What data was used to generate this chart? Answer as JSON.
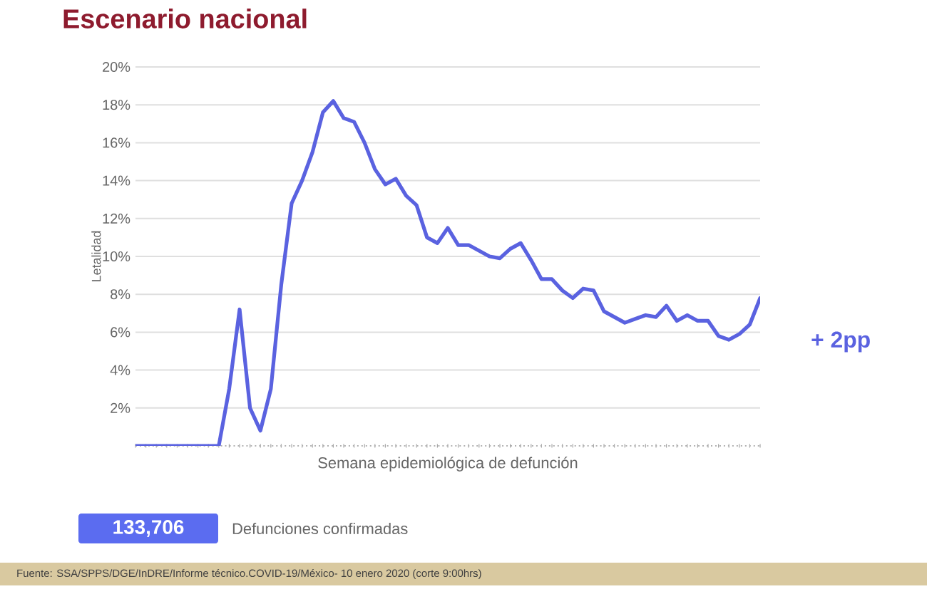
{
  "chart_data": {
    "type": "line",
    "title": "Escenario nacional",
    "xlabel": "Semana epidemiológica de defunción",
    "ylabel": "Letalidad",
    "categories": [
      null,
      null,
      null,
      null,
      null,
      null,
      null,
      null,
      null,
      null,
      null,
      null,
      null,
      null,
      null,
      null,
      null,
      null,
      null,
      null,
      null,
      null,
      null,
      null,
      null,
      null,
      null,
      null,
      null,
      null,
      null,
      null,
      null,
      null,
      null,
      null,
      null,
      null,
      null,
      null,
      null,
      null,
      null,
      null,
      null,
      null,
      null,
      null,
      null,
      null,
      null,
      null,
      null,
      null,
      null,
      null,
      null,
      null,
      null,
      null,
      null
    ],
    "series": [
      {
        "color": "#5a62e0",
        "values": [
          0,
          0,
          0,
          0,
          0,
          0,
          0,
          0,
          0,
          3.0,
          7.2,
          2.0,
          0.8,
          3.0,
          8.5,
          12.8,
          14.0,
          15.5,
          17.6,
          18.2,
          17.3,
          17.1,
          16.0,
          14.6,
          13.8,
          14.1,
          13.2,
          12.7,
          11.0,
          10.7,
          11.5,
          10.6,
          10.6,
          10.3,
          10.0,
          9.9,
          10.4,
          10.7,
          9.8,
          8.8,
          8.8,
          8.2,
          7.8,
          8.3,
          8.2,
          7.1,
          6.8,
          6.5,
          6.7,
          6.9,
          6.8,
          7.4,
          6.6,
          6.9,
          6.6,
          6.6,
          5.8,
          5.6,
          5.9,
          6.4,
          7.8
        ]
      }
    ],
    "ylim": [
      0,
      20
    ],
    "yticks": [
      {
        "value": 2,
        "label": "2%"
      },
      {
        "value": 4,
        "label": "4%"
      },
      {
        "value": 6,
        "label": "6%"
      },
      {
        "value": 8,
        "label": "8%"
      },
      {
        "value": 10,
        "label": "10%"
      },
      {
        "value": 12,
        "label": "12%"
      },
      {
        "value": 14,
        "label": "14%"
      },
      {
        "value": 16,
        "label": "16%"
      },
      {
        "value": 18,
        "label": "18%"
      },
      {
        "value": 20,
        "label": "20%"
      }
    ],
    "grid": "y",
    "marker": "none",
    "line_style": "solid",
    "tick_labels": "y",
    "annotations": [
      "+ 2pp",
      "133,706",
      "Defunciones confirmadas",
      "Fuente: SSA/SPPS/DGE/InDRE/Informe técnico.COVID-19/México- 10 enero 2020 (corte 9:00hrs)"
    ]
  }
}
